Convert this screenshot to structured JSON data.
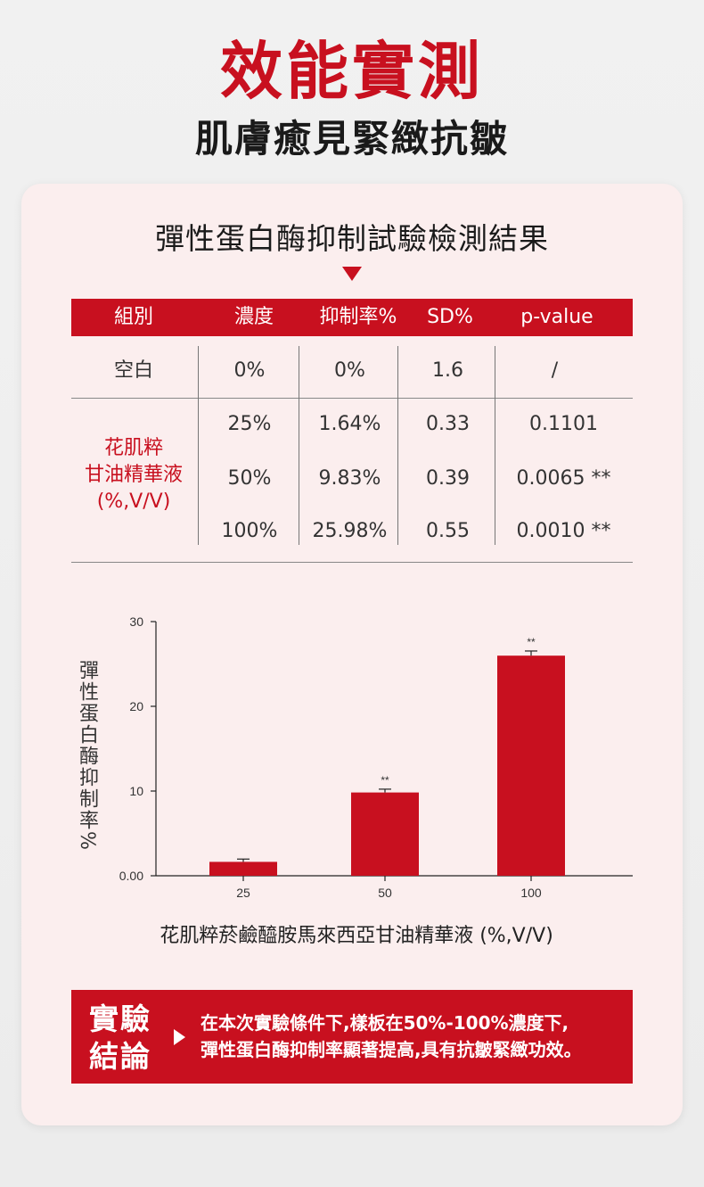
{
  "header": {
    "title": "效能實測",
    "subtitle": "肌膚癒見緊緻抗皺"
  },
  "section_title": "彈性蛋白酶抑制試驗檢測結果",
  "table": {
    "headers": [
      "組別",
      "濃度",
      "抑制率%",
      "SD%",
      "p-value"
    ],
    "blank_row": {
      "group": "空白",
      "conc": "0%",
      "rate": "0%",
      "sd": "1.6",
      "p": "/"
    },
    "group_label": [
      "花肌粹",
      "甘油精華液",
      "(%,V/V)"
    ],
    "rows": [
      {
        "conc": "25%",
        "rate": "1.64%",
        "sd": "0.33",
        "p": "0.1101"
      },
      {
        "conc": "50%",
        "rate": "9.83%",
        "sd": "0.39",
        "p": "0.0065 **"
      },
      {
        "conc": "100%",
        "rate": "25.98%",
        "sd": "0.55",
        "p": "0.0010 **"
      }
    ]
  },
  "colors": {
    "accent": "#c8101f",
    "text": "#333333",
    "card": "#fbeeee"
  },
  "chart_data": {
    "type": "bar",
    "categories": [
      "25",
      "50",
      "100"
    ],
    "values": [
      1.64,
      9.83,
      25.98
    ],
    "errors": [
      0.33,
      0.39,
      0.55
    ],
    "significance": [
      "",
      "**",
      "**"
    ],
    "ylabel": "彈性蛋白酶抑制率%",
    "xlabel": "花肌粹菸鹼醯胺馬來西亞甘油精華液 (%,V/V)",
    "yticks": [
      "0.00",
      "10",
      "20",
      "30"
    ],
    "ylim": [
      0,
      30
    ],
    "grid": false
  },
  "conclusion": {
    "label_line1": "實驗",
    "label_line2": "結論",
    "text_line1": "在本次實驗條件下,樣板在50%-100%濃度下,",
    "text_line2": "彈性蛋白酶抑制率顯著提高,具有抗皺緊緻功效。"
  }
}
